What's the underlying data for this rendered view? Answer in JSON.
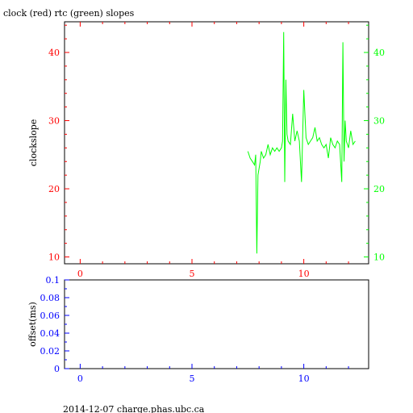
{
  "title": "clock (red) rtc (green) slopes",
  "footer": "2014-12-07 charge.phas.ubc.ca",
  "colors": {
    "clock": "#ff0000",
    "rtc": "#00ff00",
    "offset": "#0000ff",
    "axis": "#000000"
  },
  "chart_data": [
    {
      "type": "line",
      "title": "clock (red) rtc (green) slopes",
      "ylabel": "clockslope",
      "xlim": [
        -0.7,
        12.9
      ],
      "ylim": [
        9,
        44.5
      ],
      "x_ticks": [
        0,
        5,
        10
      ],
      "y_ticks_left": [
        10,
        20,
        30,
        40
      ],
      "y_ticks_right": [
        10,
        20,
        30,
        40
      ],
      "grid": false,
      "series": [
        {
          "name": "rtc",
          "color": "#00ff00",
          "x": [
            7.5,
            7.6,
            7.7,
            7.8,
            7.85,
            7.9,
            7.95,
            8.0,
            8.05,
            8.1,
            8.2,
            8.3,
            8.4,
            8.5,
            8.6,
            8.7,
            8.8,
            8.9,
            9.0,
            9.05,
            9.1,
            9.15,
            9.2,
            9.25,
            9.3,
            9.4,
            9.5,
            9.6,
            9.7,
            9.8,
            9.9,
            10.0,
            10.1,
            10.2,
            10.3,
            10.4,
            10.5,
            10.6,
            10.7,
            10.8,
            10.9,
            11.0,
            11.1,
            11.2,
            11.3,
            11.4,
            11.5,
            11.6,
            11.7,
            11.75,
            11.8,
            11.85,
            11.9,
            12.0,
            12.1,
            12.2,
            12.3
          ],
          "values": [
            25.5,
            24.5,
            24.0,
            23.5,
            25.0,
            10.5,
            22.0,
            23.0,
            24.0,
            25.5,
            24.5,
            25.0,
            26.5,
            25.0,
            26.0,
            25.5,
            26.0,
            25.5,
            26.0,
            27.0,
            43.0,
            21.0,
            36.0,
            28.0,
            27.0,
            26.5,
            31.0,
            27.0,
            28.5,
            27.0,
            21.0,
            34.5,
            27.5,
            26.5,
            27.0,
            27.5,
            29.0,
            27.0,
            27.5,
            26.5,
            26.0,
            26.5,
            24.5,
            27.5,
            26.5,
            26.0,
            27.0,
            26.5,
            21.0,
            41.5,
            24.0,
            30.0,
            27.0,
            26.0,
            28.5,
            26.5,
            27.0
          ]
        }
      ]
    },
    {
      "type": "line",
      "ylabel": "offset(ms)",
      "xlim": [
        -0.7,
        12.9
      ],
      "ylim": [
        0,
        0.1
      ],
      "x_ticks": [
        0,
        5,
        10
      ],
      "y_ticks": [
        0,
        0.02,
        0.04,
        0.06,
        0.08,
        0.1
      ],
      "y_tick_labels": [
        "0",
        "0.02",
        "0.04",
        "0.06",
        "0.08",
        "0.1"
      ],
      "grid": false,
      "series": []
    }
  ]
}
